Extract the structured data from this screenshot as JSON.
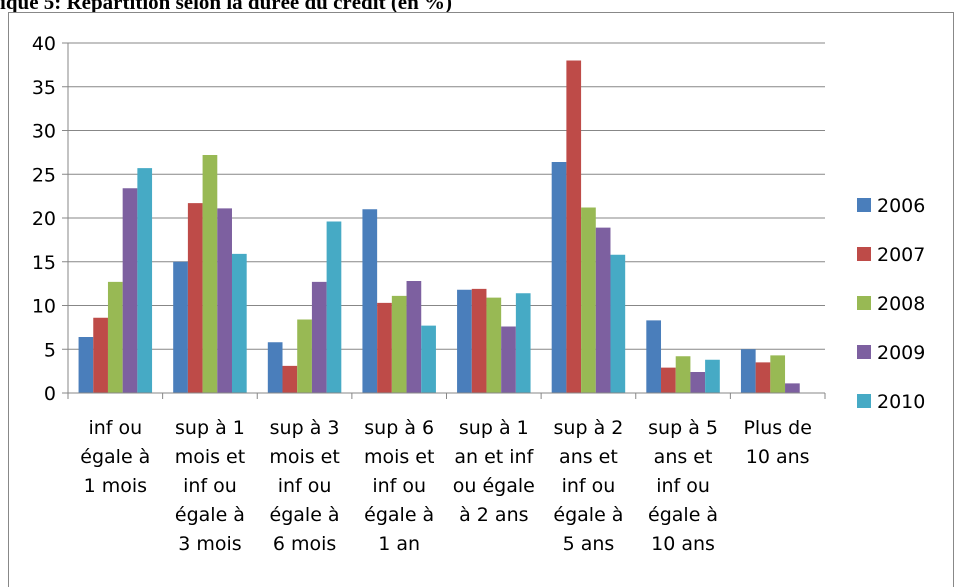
{
  "title": "ique 5:   Répartition selon la durée du crédit (en %)",
  "chart_data": {
    "type": "bar",
    "title": "Répartition selon la durée du crédit (en %)",
    "xlabel": "",
    "ylabel": "",
    "ylim": [
      0,
      40
    ],
    "yticks": [
      "0",
      "5",
      "10",
      "15",
      "20",
      "25",
      "30",
      "35",
      "40"
    ],
    "grid": true,
    "legend_position": "right",
    "categories": [
      [
        "inf ou",
        "égale à",
        "1 mois"
      ],
      [
        "sup à 1",
        "mois et",
        "inf ou",
        "égale à",
        "3 mois"
      ],
      [
        "sup à 3",
        "mois et",
        "inf ou",
        "égale à",
        "6 mois"
      ],
      [
        "sup à 6",
        "mois et",
        "inf ou",
        "égale à",
        "1 an"
      ],
      [
        "sup à 1",
        "an et inf",
        "ou égale",
        "à 2 ans"
      ],
      [
        "sup à 2",
        "ans et",
        "inf ou",
        "égale à",
        "5 ans"
      ],
      [
        "sup à 5",
        "ans et",
        "inf ou",
        "égale à",
        "10 ans"
      ],
      [
        "Plus de",
        "10 ans"
      ]
    ],
    "series": [
      {
        "name": "2006",
        "color": "#4a7ebb",
        "values": [
          6.4,
          15.0,
          5.8,
          21.0,
          11.8,
          26.4,
          8.3,
          5.0
        ]
      },
      {
        "name": "2007",
        "color": "#be4b48",
        "values": [
          8.6,
          21.7,
          3.1,
          10.3,
          11.9,
          38.0,
          2.9,
          3.5
        ]
      },
      {
        "name": "2008",
        "color": "#98b954",
        "values": [
          12.7,
          27.2,
          8.4,
          11.1,
          10.9,
          21.2,
          4.2,
          4.3
        ]
      },
      {
        "name": "2009",
        "color": "#7d60a0",
        "values": [
          23.4,
          21.1,
          12.7,
          12.8,
          7.6,
          18.9,
          2.4,
          1.1
        ]
      },
      {
        "name": "2010",
        "color": "#46aac5",
        "values": [
          25.7,
          15.9,
          19.6,
          7.7,
          11.4,
          15.8,
          3.8,
          0.0
        ]
      }
    ]
  }
}
